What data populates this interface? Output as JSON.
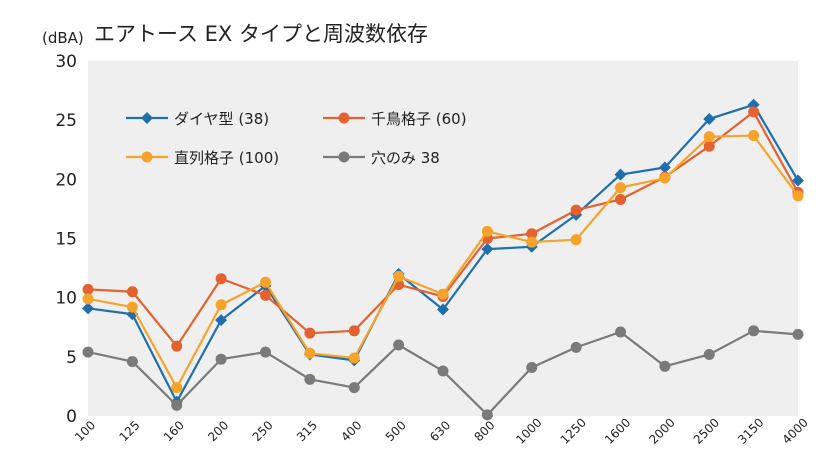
{
  "chart_data": {
    "type": "line",
    "title": "エアトース EX タイプと周波数依存",
    "ylabel": "(dBA)",
    "xlabel": "",
    "ylim": [
      0,
      30
    ],
    "yticks": [
      0,
      5,
      10,
      15,
      20,
      25,
      30
    ],
    "grid": false,
    "legend_position": "top-left",
    "categories": [
      "100",
      "125",
      "160",
      "200",
      "250",
      "315",
      "400",
      "500",
      "630",
      "800",
      "1000",
      "1250",
      "1600",
      "2000",
      "2500",
      "3150",
      "4000"
    ],
    "series": [
      {
        "name": "ダイヤ型 (38)",
        "color": "#1f6fad",
        "marker": "diamond",
        "values": [
          9.1,
          8.6,
          1.2,
          8.1,
          11.0,
          5.2,
          4.7,
          12.0,
          9.0,
          14.1,
          14.3,
          17.0,
          20.4,
          21.0,
          25.1,
          26.3,
          19.9
        ]
      },
      {
        "name": "千鳥格子 (60)",
        "color": "#e3622f",
        "marker": "circle",
        "values": [
          10.7,
          10.5,
          5.9,
          11.6,
          10.2,
          7.0,
          7.2,
          11.1,
          10.1,
          15.0,
          15.4,
          17.4,
          18.3,
          20.2,
          22.8,
          25.7,
          18.9
        ]
      },
      {
        "name": "直列格子 (100)",
        "color": "#f5a32a",
        "marker": "circle",
        "values": [
          9.9,
          9.2,
          2.4,
          9.4,
          11.3,
          5.3,
          4.9,
          11.8,
          10.3,
          15.6,
          14.7,
          14.9,
          19.3,
          20.1,
          23.6,
          23.7,
          18.6
        ]
      },
      {
        "name": "穴のみ 38",
        "color": "#7a7a7a",
        "marker": "circle",
        "values": [
          5.4,
          4.6,
          0.9,
          4.8,
          5.4,
          3.1,
          2.4,
          6.0,
          3.8,
          0.1,
          4.1,
          5.8,
          7.1,
          4.2,
          5.2,
          7.2,
          6.9
        ]
      }
    ]
  }
}
